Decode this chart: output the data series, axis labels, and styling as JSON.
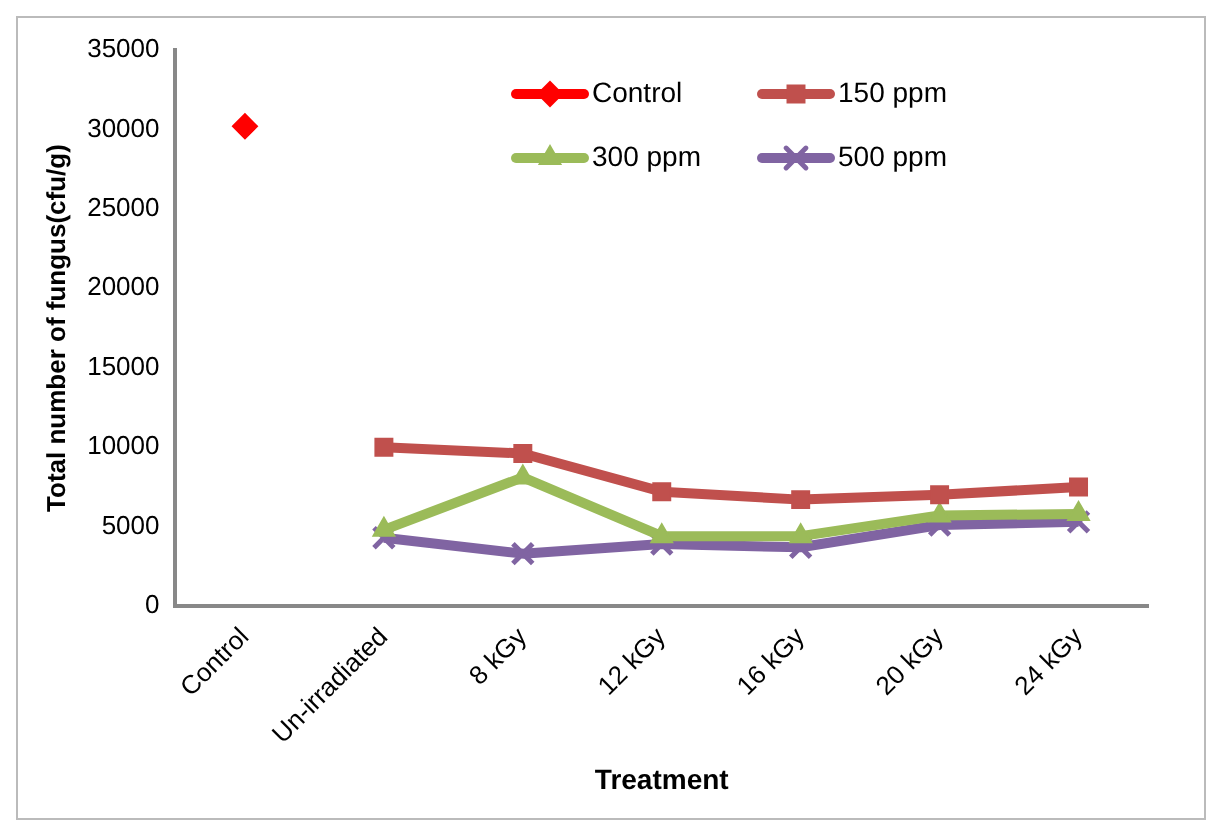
{
  "chart_data": {
    "type": "line",
    "xlabel": "Treatment",
    "ylabel": "Total number of fungus(cfu/g)",
    "categories": [
      "Control",
      "Un-irradiated",
      "8 kGy",
      "12 kGy",
      "16 kGy",
      "20 kGy",
      "24 kGy"
    ],
    "series": [
      {
        "name": "Control",
        "color": "#ff0000",
        "marker": "diamond",
        "values": [
          30200,
          null,
          null,
          null,
          null,
          null,
          null
        ]
      },
      {
        "name": "150 ppm",
        "color": "#c0504d",
        "marker": "square",
        "values": [
          null,
          10000,
          9600,
          7200,
          6700,
          7000,
          7500
        ]
      },
      {
        "name": "300 ppm",
        "color": "#9bbb59",
        "marker": "triangle",
        "values": [
          null,
          4800,
          8100,
          4400,
          4400,
          5700,
          5800
        ]
      },
      {
        "name": "500 ppm",
        "color": "#8064a2",
        "marker": "cross",
        "values": [
          null,
          4300,
          3300,
          3900,
          3700,
          5100,
          5300
        ]
      }
    ],
    "ylim": [
      0,
      35000
    ],
    "yticks": [
      0,
      5000,
      10000,
      15000,
      20000,
      25000,
      30000,
      35000
    ],
    "grid": false,
    "legend": "top right"
  }
}
